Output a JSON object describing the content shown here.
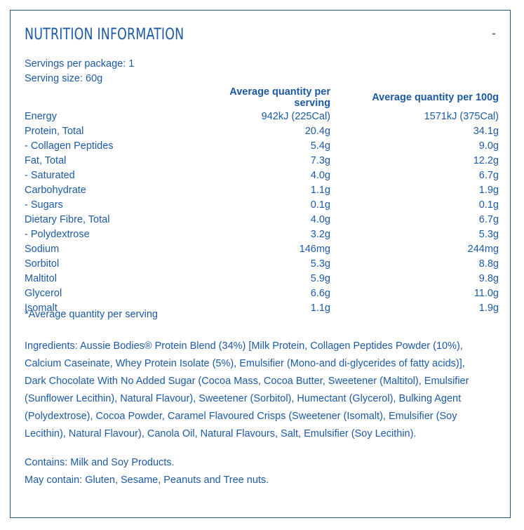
{
  "header": {
    "title": "Nutrition Information",
    "collapse_symbol": "-"
  },
  "meta": {
    "servings_per_package": "Servings per package: 1",
    "serving_size": "Serving size: 60g"
  },
  "table": {
    "headers": [
      "",
      "Average quantity per serving",
      "Average quantity per 100g"
    ],
    "rows": [
      [
        "Energy",
        "942kJ (225Cal)",
        "1571kJ (375Cal)"
      ],
      [
        "Protein, Total",
        "20.4g",
        "34.1g"
      ],
      [
        "- Collagen Peptides",
        "5.4g",
        "9.0g"
      ],
      [
        "Fat, Total",
        "7.3g",
        "12.2g"
      ],
      [
        "- Saturated",
        "4.0g",
        "6.7g"
      ],
      [
        "Carbohydrate",
        "1.1g",
        "1.9g"
      ],
      [
        "- Sugars",
        "0.1g",
        "0.1g"
      ],
      [
        "Dietary Fibre, Total",
        "4.0g",
        "6.7g"
      ],
      [
        "- Polydextrose",
        "3.2g",
        "5.3g"
      ],
      [
        "Sodium",
        "146mg",
        "244mg"
      ],
      [
        "Sorbitol",
        "5.3g",
        "8.8g"
      ],
      [
        "Maltitol",
        "5.9g",
        "9.8g"
      ],
      [
        "Glycerol",
        "6.6g",
        "11.0g"
      ],
      [
        "Isomalt",
        "1.1g",
        "1.9g"
      ]
    ]
  },
  "footnote": "*Average quantity per serving",
  "ingredients": "Ingredients: Aussie Bodies® Protein Blend (34%) [Milk Protein, Collagen Peptides Powder (10%), Calcium Caseinate, Whey Protein Isolate (5%), Emulsifier (Mono-and di-glycerides of fatty acids)], Dark Chocolate With No Added Sugar (Cocoa Mass, Cocoa Butter, Sweetener (Maltitol), Emulsifier (Sunflower Lecithin), Natural Flavour), Sweetener (Sorbitol), Humectant (Glycerol), Bulking Agent (Polydextrose), Cocoa Powder, Caramel Flavoured Crisps (Sweetener (Isomalt), Emulsifier (Soy Lecithin), Natural Flavour), Canola Oil, Natural Flavours, Salt, Emulsifier (Soy Lecithin).",
  "allergens": {
    "contains": "Contains: Milk and Soy Products.",
    "may_contain": "May contain: Gluten, Sesame, Peanuts and Tree nuts."
  },
  "colors": {
    "text": "#1d5aa6",
    "border": "#1d5aa6",
    "background": "#ffffff"
  }
}
